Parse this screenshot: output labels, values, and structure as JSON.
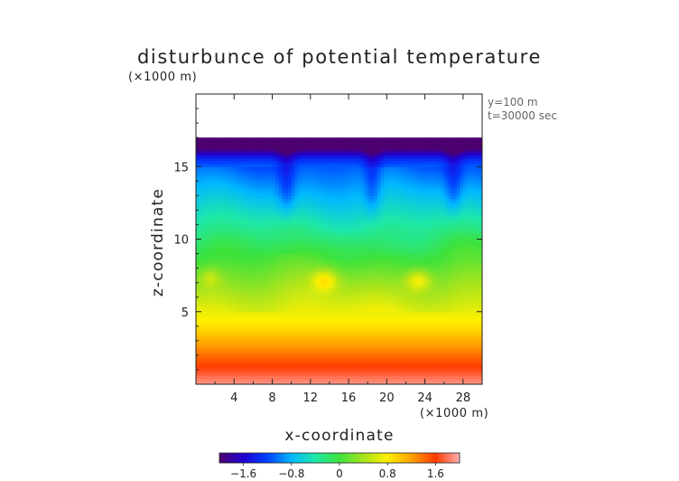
{
  "chart_data": {
    "type": "heatmap",
    "title": "disturbunce of potential temperature",
    "xlabel": "x-coordinate",
    "ylabel": "z-coordinate",
    "x_unit": "(×1000 m)",
    "y_unit": "(×1000 m)",
    "annotations": [
      "y=100 m",
      "t=30000 sec"
    ],
    "x_range": [
      0,
      30
    ],
    "y_range": [
      0,
      20
    ],
    "x_ticks": [
      4,
      8,
      12,
      16,
      20,
      24,
      28
    ],
    "y_ticks": [
      5,
      10,
      15
    ],
    "data_top": 17,
    "colorbar": {
      "range": [
        -2,
        2
      ],
      "tick_values": [
        -1.6,
        -0.8,
        0,
        0.8,
        1.6
      ],
      "tick_labels": [
        "−1.6",
        "−0.8",
        "0",
        "0.8",
        "1.6"
      ]
    },
    "colors": {
      "cmap": [
        "#4b006f",
        "#1f00d0",
        "#0040ff",
        "#00b8ff",
        "#1ee8a8",
        "#3ce23c",
        "#a6e41e",
        "#fff000",
        "#ffa000",
        "#ff3a00",
        "#ffb0b0"
      ],
      "axis": "#222222"
    },
    "grid": false,
    "legend": "colorbar-bottom"
  }
}
